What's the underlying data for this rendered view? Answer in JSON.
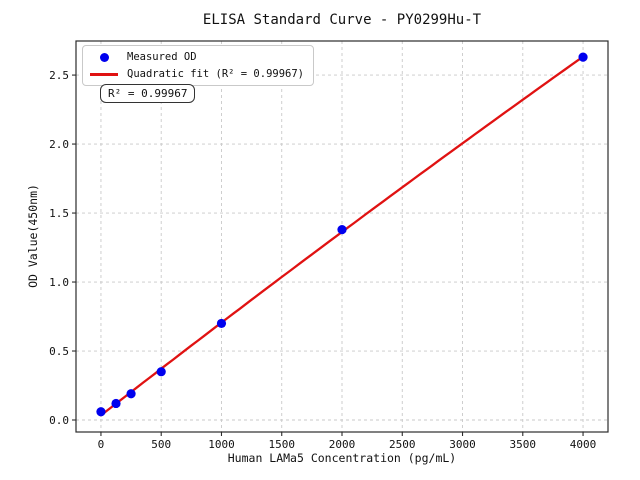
{
  "annotation": {
    "text": "R² = 0.99967"
  },
  "colors": {
    "scatter_points": "#0000ee",
    "fit_line": "#e01212",
    "grid": "#c9c9c9",
    "spine": "#2b2b2b",
    "background": "#ffffff",
    "text": "#111111"
  },
  "chart_data": {
    "type": "scatter",
    "title": "ELISA Standard Curve - PY0299Hu-T",
    "xlabel": "Human LAMa5 Concentration (pg/mL)",
    "ylabel": "OD Value(450nm)",
    "series": [
      {
        "name": "Measured OD",
        "type": "scatter",
        "color": "#0000ee",
        "x": [
          0,
          125,
          250,
          500,
          1000,
          2000,
          4000
        ],
        "y": [
          0.06,
          0.12,
          0.19,
          0.35,
          0.7,
          1.38,
          2.63
        ]
      },
      {
        "name": "Quadratic fit (R² = 0.99967)",
        "type": "line",
        "color": "#e01212",
        "fit": "quadratic",
        "r_squared": 0.99967
      }
    ],
    "xlim": [
      -207,
      4207
    ],
    "ylim": [
      -0.087,
      2.747
    ],
    "xticks": [
      0,
      500,
      1000,
      1500,
      2000,
      2500,
      3000,
      3500,
      4000
    ],
    "yticks": [
      0,
      0.5,
      1,
      1.5,
      2,
      2.5
    ],
    "grid": true,
    "grid_style": "dashed",
    "legend_position": "upper-left"
  }
}
